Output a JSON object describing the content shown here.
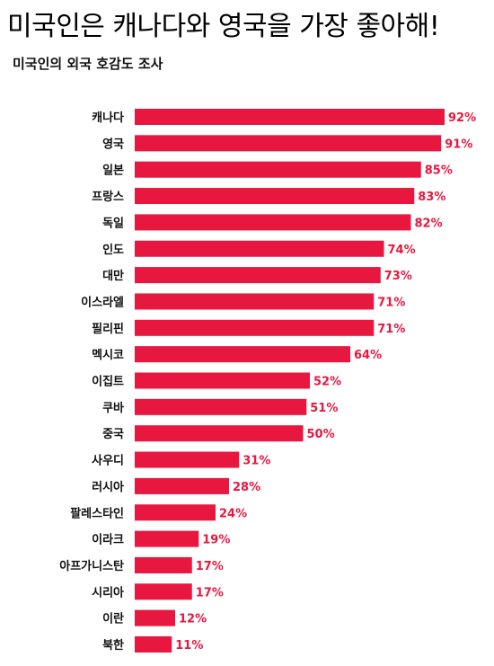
{
  "title": "미국인은 캐나다와 영국을 가장 좋아해!",
  "subtitle": "미국인의 외국 호감도 조사",
  "colors": {
    "bar": "#e8173f",
    "value_text": "#e8173f"
  },
  "chart_data": {
    "type": "bar",
    "orientation": "horizontal",
    "categories": [
      "캐나다",
      "영국",
      "일본",
      "프랑스",
      "독일",
      "인도",
      "대만",
      "이스라엘",
      "필리핀",
      "멕시코",
      "이집트",
      "쿠바",
      "중국",
      "사우디",
      "러시아",
      "팔레스타인",
      "이라크",
      "아프가니스탄",
      "시리아",
      "이란",
      "북한"
    ],
    "values": [
      92,
      91,
      85,
      83,
      82,
      74,
      73,
      71,
      71,
      64,
      52,
      51,
      50,
      31,
      28,
      24,
      19,
      17,
      17,
      12,
      11
    ],
    "value_labels": [
      "92%",
      "91%",
      "85%",
      "83%",
      "82%",
      "74%",
      "73%",
      "71%",
      "71%",
      "64%",
      "52%",
      "51%",
      "50%",
      "31%",
      "28%",
      "24%",
      "19%",
      "17%",
      "17%",
      "12%",
      "11%"
    ],
    "unit": "%",
    "xlim": [
      0,
      100
    ],
    "grid": false,
    "legend": "none"
  }
}
